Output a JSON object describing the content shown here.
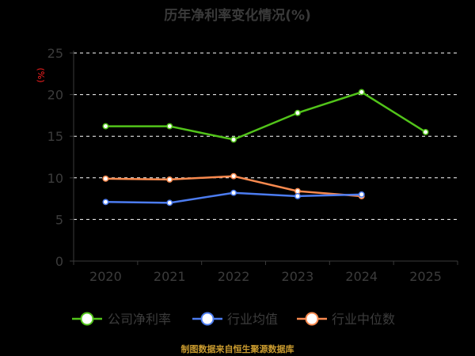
{
  "chart_data": {
    "type": "line",
    "title": "历年净利率变化情况(%)",
    "ylabel": "(%)",
    "categories": [
      "2020",
      "2021",
      "2022",
      "2023",
      "2024",
      "2025"
    ],
    "ylim": [
      0,
      25
    ],
    "yticks": [
      0,
      5,
      10,
      15,
      20,
      25
    ],
    "grid": true,
    "legend_position": "bottom",
    "series": [
      {
        "name": "公司净利率",
        "color": "#52c41a",
        "values": [
          16.2,
          16.2,
          14.6,
          17.8,
          20.3,
          15.5
        ]
      },
      {
        "name": "行业均值",
        "color": "#4c7cf0",
        "values": [
          7.1,
          7.0,
          8.2,
          7.8,
          8.0,
          null
        ]
      },
      {
        "name": "行业中位数",
        "color": "#f98a4f",
        "values": [
          9.9,
          9.8,
          10.2,
          8.4,
          7.8,
          null
        ]
      }
    ]
  },
  "footer": {
    "source": "制图数据来自恒生聚源数据库"
  }
}
